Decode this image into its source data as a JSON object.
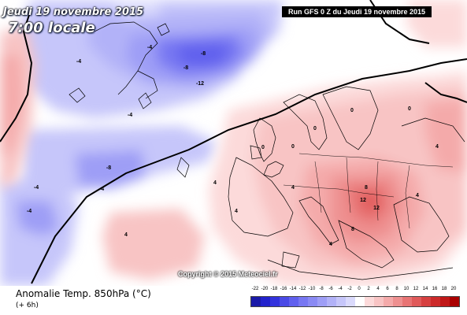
{
  "header": {
    "date_line": "Jeudi 19 novembre 2015",
    "time_line": "7:00 locale",
    "run_info": "Run GFS 0 Z du Jeudi 19 novembre 2015"
  },
  "copyright": "Copyright © 2015 Meteociel.fr",
  "legend": {
    "variable_title": "Anomalie Temp. 850hPa (°C)",
    "lead_time": "(+ 6h)",
    "ticks": [
      "-22",
      "-20",
      "-18",
      "-16",
      "-14",
      "-12",
      "-10",
      "-8",
      "-6",
      "-4",
      "-2",
      "0",
      "2",
      "4",
      "6",
      "8",
      "10",
      "12",
      "14",
      "16",
      "18",
      "20"
    ],
    "colors": [
      "#1a1aa8",
      "#2222cc",
      "#3333dd",
      "#4a4ae6",
      "#6060ee",
      "#7777f2",
      "#8a8af4",
      "#9e9ef6",
      "#b2b2f8",
      "#c6c6fa",
      "#dadafc",
      "#ffffff",
      "#fcdada",
      "#f8c4c4",
      "#f4aaaa",
      "#ee9090",
      "#e87474",
      "#e05a5a",
      "#d64040",
      "#cc2a2a",
      "#c01818",
      "#aa0000"
    ]
  },
  "contour_labels": [
    "-4",
    "-8",
    "-12",
    "-8",
    "-4",
    "0",
    "-4",
    "-4",
    "-4",
    "-8",
    "-4",
    "4",
    "0",
    "0",
    "0",
    "0",
    "4",
    "4",
    "4",
    "4",
    "8",
    "12",
    "12",
    "8",
    "4",
    "4"
  ],
  "colors": {
    "background": "#ffffff",
    "cold": "#8a8af4",
    "warm": "#f4aaaa",
    "coast": "#000000",
    "run_box_bg": "#000000"
  }
}
